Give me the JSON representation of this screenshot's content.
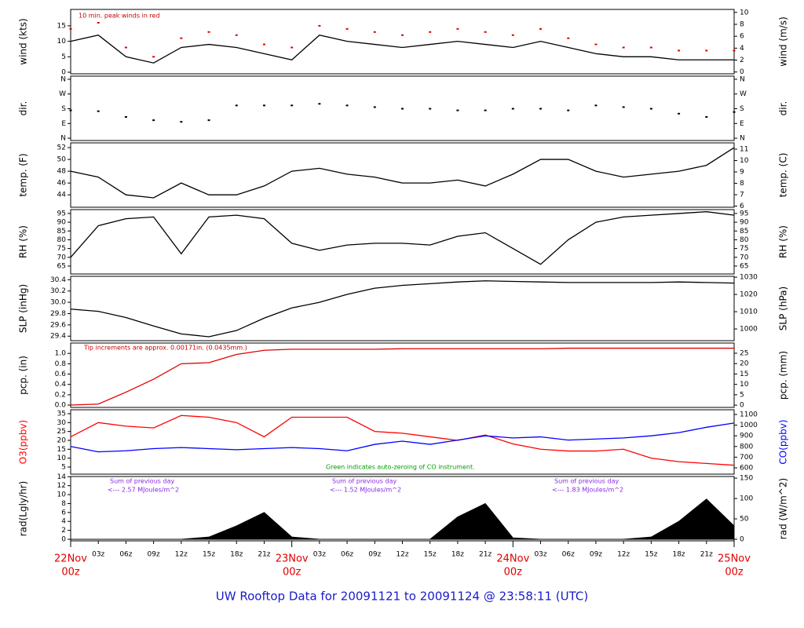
{
  "title": "UW Rooftop Data for 20091121  to  20091124 @ 23:58:11  (UTC)",
  "chart_data": [
    {
      "type": "line",
      "ylabel": "wind (kts)",
      "y2label": "wind (m/s)",
      "x": [
        0,
        3,
        6,
        9,
        12,
        15,
        18,
        21,
        24,
        27,
        30,
        33,
        36,
        39,
        42,
        45,
        48,
        51,
        54,
        57,
        60,
        63,
        66,
        69,
        72
      ],
      "ylim": [
        -0.5,
        20.3
      ],
      "yticks": [
        0,
        5,
        10,
        15
      ],
      "y2lim": [
        -0.3,
        10.5
      ],
      "y2ticks": [
        0,
        2,
        4,
        6,
        8,
        10
      ],
      "annotations": [
        "10 min. peak winds in red"
      ],
      "series": [
        {
          "name": "wind",
          "color": "#000000",
          "style": "line",
          "values": [
            10,
            12,
            5,
            3,
            8,
            9,
            8,
            6,
            4,
            12,
            10,
            9,
            8,
            9,
            10,
            9,
            8,
            10,
            8,
            6,
            5,
            5,
            4,
            4,
            4
          ]
        },
        {
          "name": "peak",
          "color": "#e00000",
          "style": "points",
          "values": [
            14,
            16,
            8,
            5,
            11,
            13,
            12,
            9,
            8,
            15,
            14,
            13,
            12,
            13,
            14,
            13,
            12,
            14,
            11,
            9,
            8,
            8,
            7,
            7,
            7
          ]
        }
      ]
    },
    {
      "type": "scatter",
      "ylabel": "dir.",
      "y2label": "dir.",
      "x": [
        0,
        3,
        6,
        9,
        12,
        15,
        18,
        21,
        24,
        27,
        30,
        33,
        36,
        39,
        42,
        45,
        48,
        51,
        54,
        57,
        60,
        63,
        66,
        69,
        72
      ],
      "ylim": [
        -14,
        379
      ],
      "yticks": [
        {
          "value": 360,
          "label": "N"
        },
        {
          "value": 270,
          "label": "W"
        },
        {
          "value": 180,
          "label": "S"
        },
        {
          "value": 90,
          "label": "E"
        },
        {
          "value": 0,
          "label": "N"
        }
      ],
      "y2lim": [
        -14,
        379
      ],
      "y2ticks": [
        {
          "value": 360,
          "label": "N"
        },
        {
          "value": 270,
          "label": "W"
        },
        {
          "value": 180,
          "label": "S"
        },
        {
          "value": 90,
          "label": "E"
        },
        {
          "value": 0,
          "label": "N"
        }
      ],
      "series": [
        {
          "name": "direction",
          "color": "#000000",
          "style": "points",
          "values": [
            170,
            165,
            130,
            110,
            100,
            110,
            200,
            200,
            200,
            210,
            200,
            190,
            180,
            180,
            170,
            170,
            180,
            180,
            170,
            200,
            190,
            180,
            150,
            130,
            160
          ]
        }
      ]
    },
    {
      "type": "line",
      "ylabel": "temp. (F)",
      "y2label": "temp. (C)",
      "x": [
        0,
        3,
        6,
        9,
        12,
        15,
        18,
        21,
        24,
        27,
        30,
        33,
        36,
        39,
        42,
        45,
        48,
        51,
        54,
        57,
        60,
        63,
        66,
        69,
        72
      ],
      "ylim": [
        41.9,
        52.8
      ],
      "yticks": [
        44,
        46,
        48,
        50,
        52
      ],
      "y2lim": [
        5.9,
        11.55
      ],
      "y2ticks": [
        6,
        7,
        8,
        9,
        10,
        11
      ],
      "series": [
        {
          "name": "temperature",
          "color": "#000000",
          "style": "line",
          "values": [
            48,
            47,
            44,
            43.5,
            46,
            44,
            44,
            45.5,
            48,
            48.5,
            47.5,
            47,
            46,
            46,
            46.5,
            45.5,
            47.5,
            50,
            50,
            48,
            47,
            47.5,
            48,
            49,
            52
          ]
        }
      ]
    },
    {
      "type": "line",
      "ylabel": "RH (%)",
      "y2label": "RH (%)",
      "x": [
        0,
        3,
        6,
        9,
        12,
        15,
        18,
        21,
        24,
        27,
        30,
        33,
        36,
        39,
        42,
        45,
        48,
        51,
        54,
        57,
        60,
        63,
        66,
        69,
        72
      ],
      "ylim": [
        60.5,
        97.2
      ],
      "yticks": [
        65,
        70,
        75,
        80,
        85,
        90,
        95
      ],
      "y2lim": [
        60.5,
        97.2
      ],
      "y2ticks": [
        65,
        70,
        75,
        80,
        85,
        90,
        95
      ],
      "series": [
        {
          "name": "humidity",
          "color": "#000000",
          "style": "line",
          "values": [
            70,
            88,
            92,
            93,
            72,
            93,
            94,
            92,
            78,
            74,
            77,
            78,
            78,
            77,
            82,
            84,
            75,
            66,
            80,
            90,
            93,
            94,
            95,
            96,
            94
          ]
        }
      ]
    },
    {
      "type": "line",
      "ylabel": "SLP (inHg)",
      "y2label": "SLP (hPa)",
      "x": [
        0,
        3,
        6,
        9,
        12,
        15,
        18,
        21,
        24,
        27,
        30,
        33,
        36,
        39,
        42,
        45,
        48,
        51,
        54,
        57,
        60,
        63,
        66,
        69,
        72
      ],
      "ylim": [
        29.32,
        30.46
      ],
      "yticks": [
        29.4,
        29.6,
        29.8,
        {
          "value": 30,
          "label": "30.0"
        },
        30.2,
        30.4
      ],
      "y2lim": [
        993.2,
        1030.5
      ],
      "y2ticks": [
        1000,
        1010,
        1020,
        1030
      ],
      "series": [
        {
          "name": "pressure",
          "color": "#000000",
          "style": "line",
          "values": [
            29.88,
            29.84,
            29.73,
            29.58,
            29.44,
            29.39,
            29.5,
            29.72,
            29.9,
            30.0,
            30.14,
            30.25,
            30.3,
            30.33,
            30.36,
            30.38,
            30.37,
            30.36,
            30.35,
            30.35,
            30.35,
            30.35,
            30.36,
            30.35,
            30.34
          ]
        }
      ]
    },
    {
      "type": "line",
      "ylabel": "pcp. (in)",
      "y2label": "pcp. (mm)",
      "x": [
        0,
        3,
        6,
        9,
        12,
        15,
        18,
        21,
        24,
        27,
        30,
        33,
        36,
        39,
        42,
        45,
        48,
        51,
        54,
        57,
        60,
        63,
        66,
        69,
        72
      ],
      "ylim": [
        -0.045,
        1.2
      ],
      "yticks": [
        {
          "value": 0,
          "label": "0.0"
        },
        0.2,
        0.4,
        0.6,
        0.8,
        {
          "value": 1,
          "label": "1.0"
        }
      ],
      "y2lim": [
        -1.1,
        29.9
      ],
      "y2ticks": [
        0,
        5,
        10,
        15,
        20,
        25
      ],
      "annotations": [
        "Tip increments are approx. 0.00171in. (0.0435mm.)"
      ],
      "series": [
        {
          "name": "precipitation",
          "color": "#e00000",
          "style": "line",
          "values": [
            0,
            0.02,
            0.25,
            0.5,
            0.8,
            0.82,
            0.98,
            1.06,
            1.08,
            1.08,
            1.08,
            1.08,
            1.09,
            1.09,
            1.09,
            1.09,
            1.09,
            1.09,
            1.1,
            1.1,
            1.1,
            1.1,
            1.1,
            1.1,
            1.1
          ]
        }
      ]
    },
    {
      "type": "line",
      "ylabel": "O3(ppbv)",
      "y2label": "CO(ppbv)",
      "x": [
        0,
        3,
        6,
        9,
        12,
        15,
        18,
        21,
        24,
        27,
        30,
        33,
        36,
        39,
        42,
        45,
        48,
        51,
        54,
        57,
        60,
        63,
        66,
        69,
        72
      ],
      "ylim": [
        1,
        37.2
      ],
      "yticks": [
        5,
        10,
        15,
        20,
        25,
        30,
        35
      ],
      "y2lim": [
        541,
        1144
      ],
      "y2ticks": [
        600,
        700,
        800,
        900,
        1000,
        1100
      ],
      "annotations": [
        "Green indicates auto-zeroing of CO instrument."
      ],
      "series": [
        {
          "name": "O3",
          "color": "#ff0000",
          "style": "line",
          "values": [
            22,
            30,
            28,
            27,
            34,
            33,
            30,
            22,
            33,
            33,
            33,
            25,
            24,
            22,
            20,
            23,
            18,
            15,
            14,
            14,
            15,
            10,
            8,
            7,
            6
          ]
        },
        {
          "name": "CO",
          "color": "#0000ff",
          "style": "line",
          "axis": "y2",
          "values": [
            800,
            750,
            760,
            780,
            790,
            780,
            770,
            780,
            790,
            780,
            760,
            820,
            850,
            820,
            860,
            900,
            880,
            890,
            860,
            870,
            880,
            900,
            930,
            980,
            1020
          ]
        }
      ]
    },
    {
      "type": "line",
      "ylabel": "rad(Lgly/hr)",
      "y2label": "rad (W/m^2)",
      "x": [
        0,
        3,
        6,
        9,
        12,
        15,
        18,
        21,
        24,
        27,
        30,
        33,
        36,
        39,
        42,
        45,
        48,
        51,
        54,
        57,
        60,
        63,
        66,
        69,
        72
      ],
      "ylim": [
        -0.35,
        14.05
      ],
      "yticks": [
        0,
        2,
        4,
        6,
        8,
        10,
        12,
        14
      ],
      "y2lim": [
        -3.9,
        154
      ],
      "y2ticks": [
        0,
        50,
        100,
        150
      ],
      "xlim": [
        0,
        72
      ],
      "xticks": [
        {
          "value": 0,
          "label": "00z"
        },
        {
          "value": 3,
          "label": "03z"
        },
        {
          "value": 6,
          "label": "06z"
        },
        {
          "value": 9,
          "label": "09z"
        },
        {
          "value": 12,
          "label": "12z"
        },
        {
          "value": 15,
          "label": "15z"
        },
        {
          "value": 18,
          "label": "18z"
        },
        {
          "value": 21,
          "label": "21z"
        },
        {
          "value": 24,
          "label": "00z"
        },
        {
          "value": 27,
          "label": "03z"
        },
        {
          "value": 30,
          "label": "06z"
        },
        {
          "value": 33,
          "label": "09z"
        },
        {
          "value": 36,
          "label": "12z"
        },
        {
          "value": 39,
          "label": "15z"
        },
        {
          "value": 42,
          "label": "18z"
        },
        {
          "value": 45,
          "label": "21z"
        },
        {
          "value": 48,
          "label": "00z"
        },
        {
          "value": 51,
          "label": "03z"
        },
        {
          "value": 54,
          "label": "06z"
        },
        {
          "value": 57,
          "label": "09z"
        },
        {
          "value": 60,
          "label": "12z"
        },
        {
          "value": 63,
          "label": "15z"
        },
        {
          "value": 66,
          "label": "18z"
        },
        {
          "value": 69,
          "label": "21z"
        },
        {
          "value": 72,
          "label": "00z"
        }
      ],
      "date_ticks": [
        {
          "value": 0,
          "label": "22Nov"
        },
        {
          "value": 24,
          "label": "23Nov"
        },
        {
          "value": 48,
          "label": "24Nov"
        },
        {
          "value": 72,
          "label": "25Nov"
        }
      ],
      "annotations": [
        "Sum of previous day",
        "<--- 2.57 MJoules/m^2",
        "Sum of previous day",
        "<--- 1.52 MJoules/m^2",
        "Sum of previous day",
        "<--- 1.83 MJoules/m^2"
      ],
      "series": [
        {
          "name": "radiation",
          "color": "#000000",
          "style": "area",
          "values": [
            0,
            0,
            0,
            0,
            0,
            0.5,
            3,
            6,
            0.5,
            0,
            0,
            0,
            0,
            0,
            5,
            8,
            0.3,
            0,
            0,
            0,
            0,
            0.5,
            4,
            9,
            3
          ]
        }
      ]
    }
  ]
}
